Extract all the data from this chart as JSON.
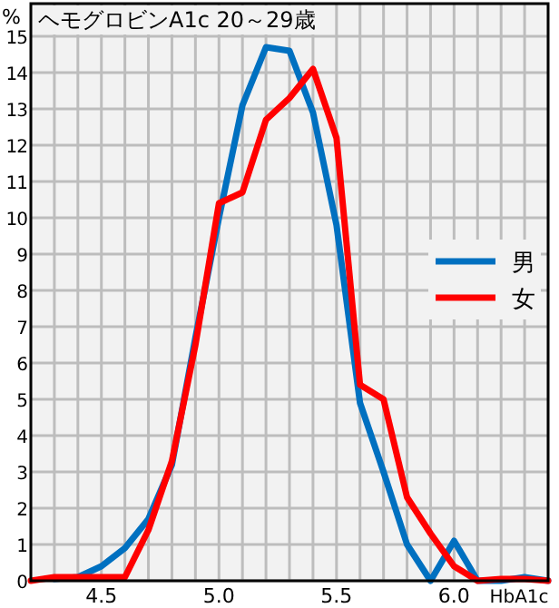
{
  "chart_data": {
    "type": "line",
    "title": "ヘモグロビンA1c 20～29歳",
    "xlabel": "HbA1c",
    "ylabel": "%",
    "x": [
      4.2,
      4.3,
      4.4,
      4.5,
      4.6,
      4.7,
      4.8,
      4.9,
      5.0,
      5.1,
      5.2,
      5.3,
      5.4,
      5.5,
      5.6,
      5.7,
      5.8,
      5.9,
      6.0,
      6.1,
      6.2,
      6.3,
      6.4
    ],
    "series": [
      {
        "name": "男",
        "color": "#0070c0",
        "values": [
          null,
          0.05,
          0.1,
          0.4,
          0.9,
          1.7,
          3.2,
          6.7,
          10.0,
          13.1,
          14.7,
          14.6,
          12.9,
          9.8,
          4.9,
          3.0,
          1.0,
          0.0,
          1.1,
          0.0,
          0.0,
          0.1,
          0.0
        ]
      },
      {
        "name": "女",
        "color": "#ff0000",
        "values": [
          0.0,
          0.1,
          0.1,
          0.1,
          0.1,
          1.4,
          3.3,
          6.5,
          10.4,
          10.7,
          12.7,
          13.3,
          14.1,
          12.2,
          5.4,
          5.0,
          2.3,
          1.3,
          0.4,
          0.0,
          0.05,
          0.05,
          0.0
        ]
      }
    ],
    "xlim": [
      4.2,
      6.4
    ],
    "ylim": [
      0,
      15.9
    ],
    "xticks": [
      {
        "value": 4.3,
        "label": null
      },
      {
        "value": 4.4,
        "label": null
      },
      4.5,
      {
        "value": 4.6,
        "label": null
      },
      {
        "value": 4.7,
        "label": null
      },
      {
        "value": 4.8,
        "label": null
      },
      {
        "value": 4.9,
        "label": null
      },
      {
        "value": 5.0,
        "label": "5.0"
      },
      {
        "value": 5.1,
        "label": null
      },
      {
        "value": 5.2,
        "label": null
      },
      {
        "value": 5.3,
        "label": null
      },
      {
        "value": 5.4,
        "label": null
      },
      5.5,
      {
        "value": 5.6,
        "label": null
      },
      {
        "value": 5.7,
        "label": null
      },
      {
        "value": 5.8,
        "label": null
      },
      {
        "value": 5.9,
        "label": null
      },
      {
        "value": 6.0,
        "label": "6.0"
      },
      {
        "value": 6.1,
        "label": null
      },
      {
        "value": 6.2,
        "label": null
      },
      {
        "value": 6.3,
        "label": null
      }
    ],
    "yticks": [
      0,
      1,
      2,
      3,
      4,
      5,
      6,
      7,
      8,
      9,
      10,
      11,
      12,
      13,
      14,
      15
    ],
    "grid": true,
    "legend": "right",
    "marker": "none",
    "line_style": "solid"
  }
}
